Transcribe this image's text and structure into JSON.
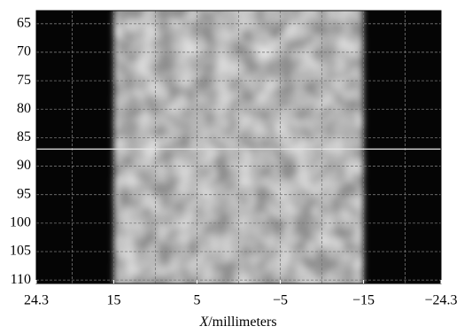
{
  "chart_data": {
    "type": "image",
    "xlabel": {
      "symbol": "X",
      "unit": "/millimeters"
    },
    "xlim": [
      24.3,
      -24.3
    ],
    "xticks": [
      24.3,
      15,
      5,
      {
        "value": -5,
        "label": "−5"
      },
      {
        "value": -15,
        "label": "−15"
      },
      {
        "value": -24.3,
        "label": "−24.3"
      }
    ],
    "xgrid": [
      20,
      15,
      10,
      5,
      0,
      -5,
      -10,
      -15,
      -20
    ],
    "ylim": [
      62.7,
      110.6
    ],
    "y_inverted": true,
    "yticks": [
      65,
      70,
      75,
      80,
      85,
      90,
      95,
      100,
      105,
      110
    ],
    "grid": true,
    "bright_region": {
      "x": [
        15,
        -15
      ]
    },
    "line_y": 87
  }
}
